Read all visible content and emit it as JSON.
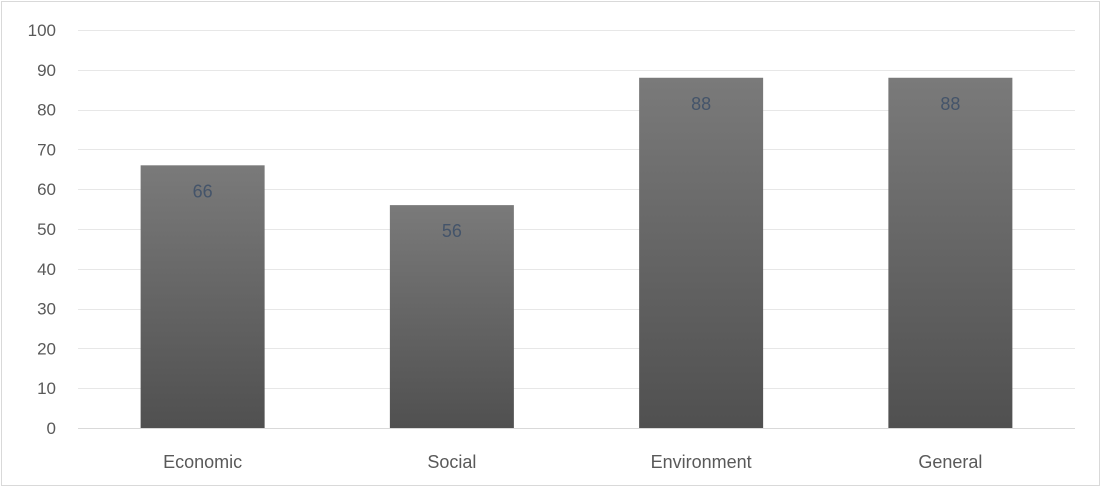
{
  "chart_data": {
    "type": "bar",
    "title": "",
    "xlabel": "",
    "ylabel": "",
    "categories": [
      "Economic",
      "Social",
      "Environment",
      "General"
    ],
    "values": [
      66,
      56,
      88,
      88
    ],
    "data_labels": [
      "66",
      "56",
      "88",
      "88"
    ],
    "ylim": [
      0,
      100
    ],
    "yticks": [
      0,
      10,
      20,
      30,
      40,
      50,
      60,
      70,
      80,
      90,
      100
    ],
    "grid": true,
    "legend": "none",
    "colors": {
      "bar_top": "#7a7a7a",
      "bar_bottom": "#505050",
      "data_label": "#44546a",
      "tick_label": "#595959",
      "grid": "#e7e7e7"
    }
  }
}
